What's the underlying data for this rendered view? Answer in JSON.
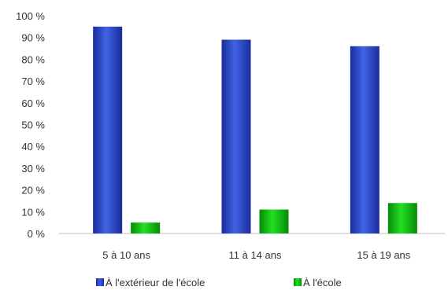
{
  "chart_data": {
    "type": "bar",
    "categories": [
      "5 à 10 ans",
      "11 à 14 ans",
      "15 à 19 ans"
    ],
    "series": [
      {
        "name": "À l'extérieur de l'école",
        "values": [
          95,
          89,
          86
        ],
        "color": "#2B48C8"
      },
      {
        "name": "À l'école",
        "values": [
          5,
          11,
          14
        ],
        "color": "#10C010"
      }
    ],
    "yticks": [
      "0 %",
      "10 %",
      "20 %",
      "30 %",
      "40 %",
      "50 %",
      "60 %",
      "70 %",
      "80 %",
      "90 %",
      "100 %"
    ],
    "ylim": [
      0,
      100
    ],
    "grid": false,
    "legend_position": "bottom"
  }
}
